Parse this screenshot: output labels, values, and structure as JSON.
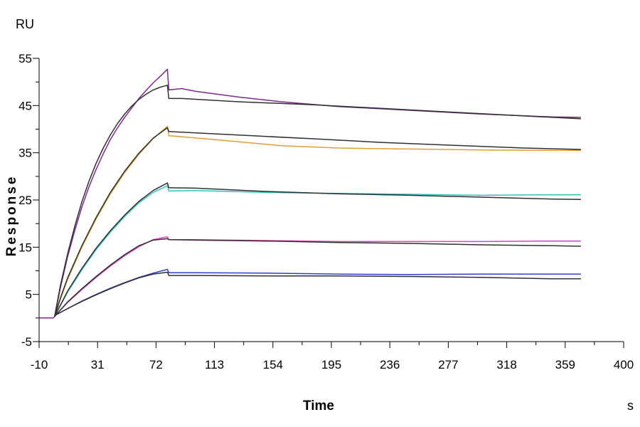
{
  "chart_data": {
    "type": "line",
    "xlabel": "Time",
    "ylabel": "Response",
    "x_unit": "s",
    "y_unit": "RU",
    "xlim": [
      -10,
      400
    ],
    "ylim": [
      -5,
      55
    ],
    "x_ticks": [
      -10,
      31,
      72,
      113,
      154,
      195,
      236,
      277,
      318,
      359,
      400
    ],
    "y_ticks": [
      -5,
      5,
      15,
      25,
      35,
      45,
      55
    ],
    "grid": false,
    "series": [
      {
        "color": "#7b2a8c",
        "points": [
          [
            -10,
            0
          ],
          [
            0,
            0
          ],
          [
            0.8,
            0.3
          ],
          [
            2,
            2
          ],
          [
            5,
            6.5
          ],
          [
            10,
            13
          ],
          [
            15,
            18.5
          ],
          [
            20,
            23.5
          ],
          [
            25,
            27.8
          ],
          [
            30,
            31.5
          ],
          [
            35,
            34.8
          ],
          [
            40,
            37.8
          ],
          [
            45,
            40.3
          ],
          [
            50,
            42.5
          ],
          [
            55,
            44.5
          ],
          [
            60,
            46.5
          ],
          [
            65,
            48.2
          ],
          [
            70,
            49.8
          ],
          [
            75,
            51.2
          ],
          [
            80,
            52.7
          ],
          [
            81,
            48.3
          ],
          [
            90,
            48.6
          ],
          [
            100,
            48
          ],
          [
            130,
            46.8
          ],
          [
            160,
            45.8
          ],
          [
            200,
            44.8
          ],
          [
            250,
            44
          ],
          [
            300,
            43.2
          ],
          [
            350,
            42.6
          ],
          [
            370,
            42.5
          ]
        ]
      },
      {
        "color": "#303030",
        "points": [
          [
            0.8,
            0.3
          ],
          [
            2,
            2.2
          ],
          [
            5,
            7
          ],
          [
            10,
            13.6
          ],
          [
            15,
            19.4
          ],
          [
            20,
            24.6
          ],
          [
            25,
            29
          ],
          [
            30,
            32.8
          ],
          [
            35,
            36
          ],
          [
            40,
            38.8
          ],
          [
            45,
            41.2
          ],
          [
            50,
            43.2
          ],
          [
            55,
            44.9
          ],
          [
            60,
            46.3
          ],
          [
            65,
            47.4
          ],
          [
            70,
            48.3
          ],
          [
            75,
            48.9
          ],
          [
            80,
            49.3
          ],
          [
            81,
            46.5
          ],
          [
            90,
            46.5
          ],
          [
            130,
            45.8
          ],
          [
            180,
            45.2
          ],
          [
            230,
            44.4
          ],
          [
            280,
            43.6
          ],
          [
            330,
            42.8
          ],
          [
            370,
            42.2
          ]
        ]
      },
      {
        "color": "#e0a030",
        "points": [
          [
            0.8,
            0.3
          ],
          [
            5,
            4
          ],
          [
            10,
            8.2
          ],
          [
            20,
            15
          ],
          [
            30,
            21
          ],
          [
            40,
            26.3
          ],
          [
            50,
            30.8
          ],
          [
            60,
            34.7
          ],
          [
            70,
            38
          ],
          [
            80,
            40.6
          ],
          [
            81,
            38.6
          ],
          [
            90,
            38.4
          ],
          [
            120,
            37.6
          ],
          [
            160,
            36.5
          ],
          [
            200,
            36
          ],
          [
            250,
            35.8
          ],
          [
            300,
            35.6
          ],
          [
            350,
            35.5
          ],
          [
            370,
            35.5
          ]
        ]
      },
      {
        "color": "#303030",
        "points": [
          [
            0.8,
            0.3
          ],
          [
            5,
            4.3
          ],
          [
            10,
            8.5
          ],
          [
            20,
            15.3
          ],
          [
            30,
            21.3
          ],
          [
            40,
            26.6
          ],
          [
            50,
            31.1
          ],
          [
            60,
            34.9
          ],
          [
            70,
            38.1
          ],
          [
            80,
            40.3
          ],
          [
            81,
            39.5
          ],
          [
            100,
            39.2
          ],
          [
            140,
            38.6
          ],
          [
            180,
            38
          ],
          [
            230,
            37.2
          ],
          [
            280,
            36.6
          ],
          [
            330,
            36
          ],
          [
            370,
            35.7
          ]
        ]
      },
      {
        "color": "#35c0c0",
        "points": [
          [
            0.8,
            0.3
          ],
          [
            10,
            5.5
          ],
          [
            20,
            10.2
          ],
          [
            30,
            14.5
          ],
          [
            40,
            18.2
          ],
          [
            50,
            21.5
          ],
          [
            60,
            24.4
          ],
          [
            70,
            26.6
          ],
          [
            80,
            28
          ],
          [
            81,
            26.9
          ],
          [
            100,
            27
          ],
          [
            150,
            26.6
          ],
          [
            200,
            26.4
          ],
          [
            250,
            26.2
          ],
          [
            300,
            26
          ],
          [
            350,
            26.1
          ],
          [
            370,
            26.1
          ]
        ]
      },
      {
        "color": "#303030",
        "points": [
          [
            0.8,
            0.3
          ],
          [
            10,
            5.7
          ],
          [
            20,
            10.5
          ],
          [
            30,
            14.8
          ],
          [
            40,
            18.5
          ],
          [
            50,
            21.8
          ],
          [
            60,
            24.7
          ],
          [
            70,
            27
          ],
          [
            80,
            28.6
          ],
          [
            81,
            27.6
          ],
          [
            100,
            27.5
          ],
          [
            150,
            26.8
          ],
          [
            200,
            26.3
          ],
          [
            250,
            26
          ],
          [
            300,
            25.6
          ],
          [
            350,
            25.2
          ],
          [
            370,
            25.1
          ]
        ]
      },
      {
        "color": "#e040c8",
        "points": [
          [
            0.8,
            0.3
          ],
          [
            10,
            3.3
          ],
          [
            20,
            6
          ],
          [
            30,
            8.6
          ],
          [
            40,
            11
          ],
          [
            50,
            13.2
          ],
          [
            60,
            15.1
          ],
          [
            70,
            16.6
          ],
          [
            80,
            17.2
          ],
          [
            81,
            16.6
          ],
          [
            100,
            16.6
          ],
          [
            150,
            16.4
          ],
          [
            200,
            16.2
          ],
          [
            250,
            16.2
          ],
          [
            300,
            16.2
          ],
          [
            350,
            16.3
          ],
          [
            370,
            16.3
          ]
        ]
      },
      {
        "color": "#303030",
        "points": [
          [
            0.8,
            0.3
          ],
          [
            10,
            3.4
          ],
          [
            20,
            6.2
          ],
          [
            30,
            8.8
          ],
          [
            40,
            11.2
          ],
          [
            50,
            13.4
          ],
          [
            60,
            15.3
          ],
          [
            70,
            16.5
          ],
          [
            80,
            16.8
          ],
          [
            81,
            16.6
          ],
          [
            100,
            16.5
          ],
          [
            150,
            16.3
          ],
          [
            200,
            16
          ],
          [
            250,
            15.8
          ],
          [
            300,
            15.5
          ],
          [
            350,
            15.3
          ],
          [
            370,
            15.2
          ]
        ]
      },
      {
        "color": "#3040c0",
        "points": [
          [
            0.8,
            0.5
          ],
          [
            10,
            2
          ],
          [
            20,
            3.6
          ],
          [
            30,
            5
          ],
          [
            40,
            6.3
          ],
          [
            50,
            7.5
          ],
          [
            60,
            8.6
          ],
          [
            70,
            9.5
          ],
          [
            80,
            10.3
          ],
          [
            81,
            9.6
          ],
          [
            100,
            9.6
          ],
          [
            150,
            9.5
          ],
          [
            200,
            9.3
          ],
          [
            250,
            9.2
          ],
          [
            300,
            9.3
          ],
          [
            350,
            9.3
          ],
          [
            370,
            9.3
          ]
        ]
      },
      {
        "color": "#303030",
        "points": [
          [
            0.8,
            0.5
          ],
          [
            10,
            2
          ],
          [
            20,
            3.5
          ],
          [
            30,
            4.9
          ],
          [
            40,
            6.2
          ],
          [
            50,
            7.4
          ],
          [
            60,
            8.5
          ],
          [
            70,
            9.3
          ],
          [
            80,
            9.7
          ],
          [
            81,
            9
          ],
          [
            100,
            9
          ],
          [
            150,
            8.9
          ],
          [
            200,
            8.9
          ],
          [
            250,
            8.8
          ],
          [
            300,
            8.6
          ],
          [
            350,
            8.3
          ],
          [
            370,
            8.3
          ]
        ]
      }
    ]
  }
}
